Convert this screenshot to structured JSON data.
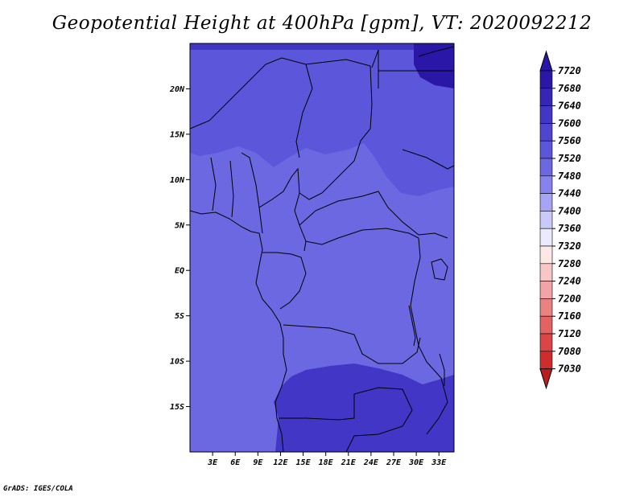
{
  "title": "Geopotential Height at 400hPa [gpm], VT: 2020092212",
  "credit": "GrADS: IGES/COLA",
  "map": {
    "lon_range": [
      0,
      35
    ],
    "lat_range": [
      -20,
      25
    ],
    "lat_ticks": [
      {
        "value": 20,
        "label": "20N"
      },
      {
        "value": 15,
        "label": "15N"
      },
      {
        "value": 10,
        "label": "10N"
      },
      {
        "value": 5,
        "label": "5N"
      },
      {
        "value": 0,
        "label": "EQ"
      },
      {
        "value": -5,
        "label": "5S"
      },
      {
        "value": -10,
        "label": "10S"
      },
      {
        "value": -15,
        "label": "15S"
      }
    ],
    "lon_ticks": [
      {
        "value": 3,
        "label": "3E"
      },
      {
        "value": 6,
        "label": "6E"
      },
      {
        "value": 9,
        "label": "9E"
      },
      {
        "value": 12,
        "label": "12E"
      },
      {
        "value": 15,
        "label": "15E"
      },
      {
        "value": 18,
        "label": "18E"
      },
      {
        "value": 21,
        "label": "21E"
      },
      {
        "value": 24,
        "label": "24E"
      },
      {
        "value": 27,
        "label": "27E"
      },
      {
        "value": 30,
        "label": "30E"
      },
      {
        "value": 33,
        "label": "33E"
      }
    ]
  },
  "colorbar": {
    "levels": [
      "7720",
      "7680",
      "7640",
      "7600",
      "7560",
      "7520",
      "7480",
      "7440",
      "7400",
      "7360",
      "7320",
      "7280",
      "7240",
      "7200",
      "7160",
      "7120",
      "7080",
      "7030"
    ],
    "colors": [
      "#2a17a8",
      "#3526b6",
      "#4236c6",
      "#4f46d0",
      "#5c57da",
      "#6b68e2",
      "#8682ee",
      "#a7a4f6",
      "#cbc9fb",
      "#eceaff",
      "#fde7e7",
      "#f8c6c6",
      "#f2a3a3",
      "#eb8282",
      "#e46262",
      "#db4545",
      "#cf2d2d",
      "#b81e1e"
    ]
  },
  "fields": {
    "background": "#6b68e2",
    "band_7600": "#5c57da",
    "band_7640": "#4236c6",
    "band_7680": "#2a17a8"
  }
}
